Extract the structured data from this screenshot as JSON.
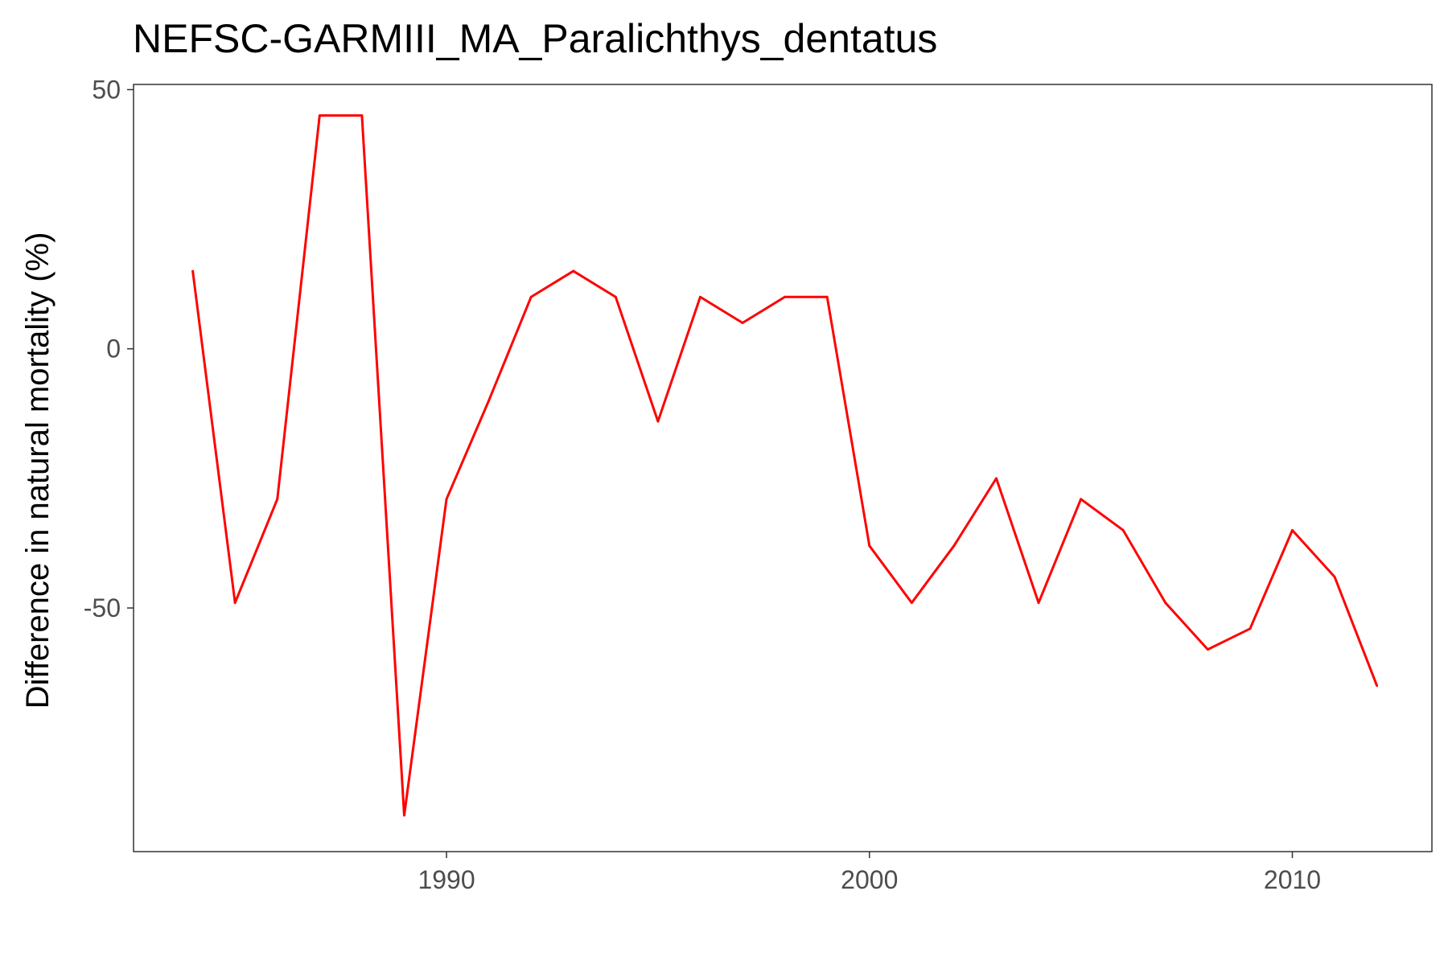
{
  "chart_data": {
    "type": "line",
    "title": "NEFSC-GARMIII_MA_Paralichthys_dentatus",
    "xlabel": "",
    "ylabel": "Difference in natural mortality (%)",
    "xlim": [
      1982.6,
      2013.3
    ],
    "ylim": [
      -97,
      51
    ],
    "x_ticks": [
      1990,
      2000,
      2010
    ],
    "y_ticks": [
      -50,
      0,
      50
    ],
    "grid": false,
    "legend": "none",
    "series": [
      {
        "color": "#ff0000",
        "x": [
          1984,
          1985,
          1986,
          1987,
          1988,
          1989,
          1990,
          1991,
          1992,
          1993,
          1994,
          1995,
          1996,
          1997,
          1998,
          1999,
          2000,
          2001,
          2002,
          2003,
          2004,
          2005,
          2006,
          2007,
          2008,
          2009,
          2010,
          2011,
          2012
        ],
        "y": [
          15,
          -49,
          -29,
          45,
          45,
          -90,
          -29,
          -10,
          10,
          15,
          10,
          -14,
          10,
          5,
          10,
          10,
          -38,
          -49,
          -38,
          -25,
          -49,
          -29,
          -35,
          -49,
          -58,
          -54,
          -35,
          -44,
          -65
        ]
      }
    ]
  }
}
